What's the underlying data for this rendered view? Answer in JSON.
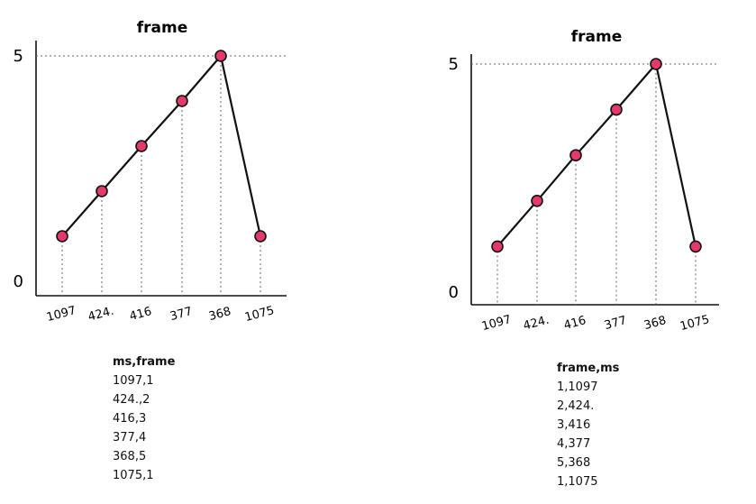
{
  "chart_data": [
    {
      "type": "line",
      "title": "frame",
      "categories": [
        "1097",
        "424.",
        "416",
        "377",
        "368",
        "1075"
      ],
      "values": [
        1,
        2,
        3,
        4,
        5,
        1
      ],
      "yticks": [
        "0",
        "5"
      ],
      "ylim": [
        0,
        5
      ],
      "grid": "dotted guide lines",
      "marker_color": "#e5386b",
      "line_color": "#111111"
    },
    {
      "type": "line",
      "title": "frame",
      "categories": [
        "1097",
        "424.",
        "416",
        "377",
        "368",
        "1075"
      ],
      "values": [
        1,
        2,
        3,
        4,
        5,
        1
      ],
      "yticks": [
        "0",
        "5"
      ],
      "ylim": [
        0,
        5
      ],
      "grid": "dotted guide lines",
      "marker_color": "#e5386b",
      "line_color": "#111111"
    }
  ],
  "tables": [
    {
      "header": "ms,frame",
      "rows": [
        "1097,1",
        "424.,2",
        "416,3",
        "377,4",
        "368,5",
        "1075,1"
      ]
    },
    {
      "header": "frame,ms",
      "rows": [
        "1,1097",
        "2,424.",
        "3,416",
        "4,377",
        "5,368",
        "1,1075"
      ]
    }
  ]
}
